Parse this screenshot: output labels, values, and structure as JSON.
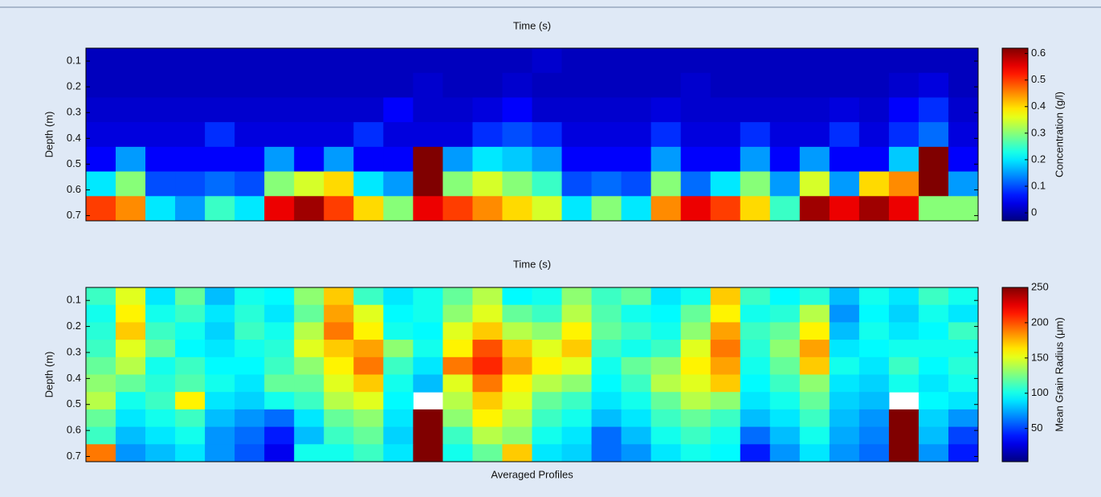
{
  "chart_data": [
    {
      "type": "heatmap",
      "title": "Time (s)",
      "ylabel": "Depth (m)",
      "colorbar_label": "Concentration (g/l)",
      "ylim": [
        0.05,
        0.72
      ],
      "yticks": [
        0.1,
        0.2,
        0.3,
        0.4,
        0.5,
        0.6,
        0.7
      ],
      "clim": [
        -0.03,
        0.62
      ],
      "cticks": [
        0,
        0.1,
        0.2,
        0.3,
        0.4,
        0.5,
        0.6
      ],
      "z": [
        [
          0.01,
          0.01,
          0.01,
          0.01,
          0.01,
          0.01,
          0.01,
          0.01,
          0.01,
          0.01,
          0.01,
          0.01,
          0.01,
          0.01,
          0.01,
          0.02,
          0.01,
          0.01,
          0.01,
          0.01,
          0.01,
          0.01,
          0.01,
          0.01,
          0.01,
          0.01,
          0.01,
          0.01,
          0.01,
          0.01
        ],
        [
          0.01,
          0.01,
          0.01,
          0.01,
          0.01,
          0.01,
          0.01,
          0.01,
          0.01,
          0.01,
          0.01,
          0.02,
          0.01,
          0.01,
          0.02,
          0.01,
          0.01,
          0.01,
          0.01,
          0.01,
          0.02,
          0.01,
          0.01,
          0.01,
          0.01,
          0.01,
          0.01,
          0.02,
          0.03,
          0.01
        ],
        [
          0.02,
          0.02,
          0.02,
          0.02,
          0.02,
          0.02,
          0.02,
          0.02,
          0.02,
          0.02,
          0.05,
          0.02,
          0.02,
          0.03,
          0.05,
          0.02,
          0.02,
          0.02,
          0.02,
          0.03,
          0.02,
          0.02,
          0.02,
          0.02,
          0.02,
          0.03,
          0.02,
          0.05,
          0.08,
          0.02
        ],
        [
          0.03,
          0.03,
          0.03,
          0.03,
          0.08,
          0.03,
          0.03,
          0.03,
          0.03,
          0.08,
          0.03,
          0.03,
          0.03,
          0.08,
          0.1,
          0.08,
          0.03,
          0.03,
          0.03,
          0.08,
          0.03,
          0.03,
          0.08,
          0.03,
          0.03,
          0.08,
          0.03,
          0.08,
          0.12,
          0.03
        ],
        [
          0.05,
          0.15,
          0.05,
          0.05,
          0.05,
          0.05,
          0.15,
          0.05,
          0.15,
          0.05,
          0.05,
          0.62,
          0.15,
          0.2,
          0.18,
          0.15,
          0.05,
          0.05,
          0.05,
          0.15,
          0.05,
          0.05,
          0.15,
          0.05,
          0.15,
          0.05,
          0.05,
          0.18,
          0.62,
          0.05
        ],
        [
          0.2,
          0.3,
          0.1,
          0.1,
          0.12,
          0.1,
          0.3,
          0.35,
          0.4,
          0.2,
          0.15,
          0.62,
          0.3,
          0.35,
          0.3,
          0.25,
          0.1,
          0.12,
          0.1,
          0.3,
          0.12,
          0.2,
          0.3,
          0.15,
          0.35,
          0.15,
          0.4,
          0.45,
          0.62,
          0.15
        ],
        [
          0.5,
          0.45,
          0.2,
          0.15,
          0.25,
          0.2,
          0.55,
          0.6,
          0.5,
          0.4,
          0.3,
          0.55,
          0.5,
          0.45,
          0.4,
          0.35,
          0.2,
          0.3,
          0.2,
          0.45,
          0.55,
          0.5,
          0.4,
          0.25,
          0.6,
          0.55,
          0.6,
          0.55,
          0.3,
          0.3
        ]
      ]
    },
    {
      "type": "heatmap",
      "title": "Time (s)",
      "xlabel": "Averaged Profiles",
      "ylabel": "Depth (m)",
      "colorbar_label": "Mean Grain Radius (μm)",
      "ylim": [
        0.05,
        0.72
      ],
      "yticks": [
        0.1,
        0.2,
        0.3,
        0.4,
        0.5,
        0.6,
        0.7
      ],
      "clim": [
        3,
        250
      ],
      "cticks": [
        50,
        100,
        150,
        200,
        250
      ],
      "z": [
        [
          110,
          150,
          90,
          120,
          80,
          100,
          95,
          130,
          170,
          110,
          90,
          100,
          120,
          140,
          95,
          100,
          130,
          110,
          120,
          90,
          100,
          170,
          110,
          95,
          105,
          80,
          100,
          90,
          110,
          100
        ],
        [
          100,
          160,
          100,
          110,
          90,
          105,
          90,
          120,
          180,
          150,
          95,
          100,
          130,
          150,
          120,
          110,
          140,
          115,
          100,
          95,
          120,
          160,
          100,
          105,
          140,
          70,
          95,
          85,
          100,
          90
        ],
        [
          105,
          170,
          110,
          100,
          85,
          110,
          100,
          140,
          190,
          160,
          100,
          95,
          150,
          170,
          140,
          130,
          160,
          120,
          110,
          100,
          130,
          180,
          110,
          120,
          160,
          80,
          100,
          90,
          95,
          110
        ],
        [
          110,
          150,
          120,
          95,
          90,
          100,
          105,
          150,
          170,
          180,
          130,
          100,
          160,
          200,
          170,
          150,
          170,
          110,
          100,
          110,
          150,
          190,
          105,
          130,
          180,
          90,
          95,
          100,
          100,
          100
        ],
        [
          120,
          140,
          100,
          110,
          95,
          95,
          110,
          130,
          160,
          190,
          110,
          90,
          190,
          210,
          180,
          160,
          150,
          100,
          120,
          130,
          160,
          180,
          100,
          120,
          170,
          100,
          90,
          110,
          95,
          105
        ],
        [
          130,
          120,
          105,
          115,
          100,
          90,
          120,
          120,
          150,
          170,
          100,
          80,
          150,
          190,
          160,
          140,
          130,
          95,
          110,
          140,
          150,
          170,
          95,
          110,
          130,
          90,
          85,
          100,
          90,
          100
        ],
        [
          140,
          100,
          110,
          160,
          90,
          85,
          100,
          110,
          140,
          150,
          95,
          null,
          140,
          170,
          150,
          120,
          110,
          90,
          100,
          120,
          140,
          130,
          90,
          100,
          120,
          85,
          80,
          null,
          95,
          90
        ],
        [
          120,
          90,
          100,
          110,
          80,
          70,
          60,
          90,
          120,
          130,
          90,
          250,
          130,
          160,
          140,
          110,
          100,
          80,
          90,
          110,
          120,
          110,
          80,
          90,
          110,
          80,
          70,
          250,
          85,
          70
        ],
        [
          110,
          80,
          90,
          100,
          70,
          60,
          40,
          80,
          110,
          120,
          85,
          250,
          110,
          140,
          130,
          100,
          90,
          60,
          80,
          100,
          110,
          100,
          60,
          80,
          100,
          75,
          65,
          250,
          80,
          50
        ],
        [
          190,
          70,
          80,
          90,
          70,
          55,
          30,
          100,
          100,
          110,
          90,
          250,
          100,
          120,
          170,
          90,
          85,
          60,
          70,
          90,
          100,
          95,
          40,
          70,
          90,
          70,
          60,
          250,
          70,
          40
        ]
      ]
    }
  ]
}
